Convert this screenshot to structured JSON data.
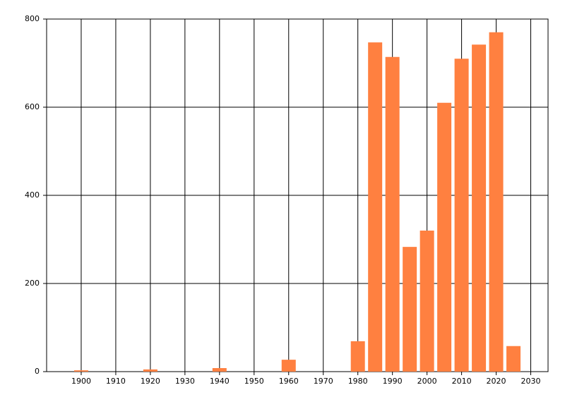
{
  "chart_data": {
    "type": "bar",
    "x": [
      1900,
      1920,
      1940,
      1960,
      1980,
      1985,
      1990,
      1995,
      2000,
      2005,
      2010,
      2015,
      2020,
      2025
    ],
    "values": [
      3,
      5,
      8,
      27,
      69,
      747,
      714,
      283,
      320,
      610,
      710,
      742,
      770,
      58
    ],
    "color": "#ff8040",
    "xlim": [
      1890,
      2035
    ],
    "xticks": [
      1900,
      1910,
      1920,
      1930,
      1940,
      1950,
      1960,
      1970,
      1980,
      1990,
      2000,
      2010,
      2020,
      2030
    ],
    "ylim": [
      0,
      800
    ],
    "yticks": [
      0,
      200,
      400,
      600,
      800
    ],
    "grid": true
  }
}
